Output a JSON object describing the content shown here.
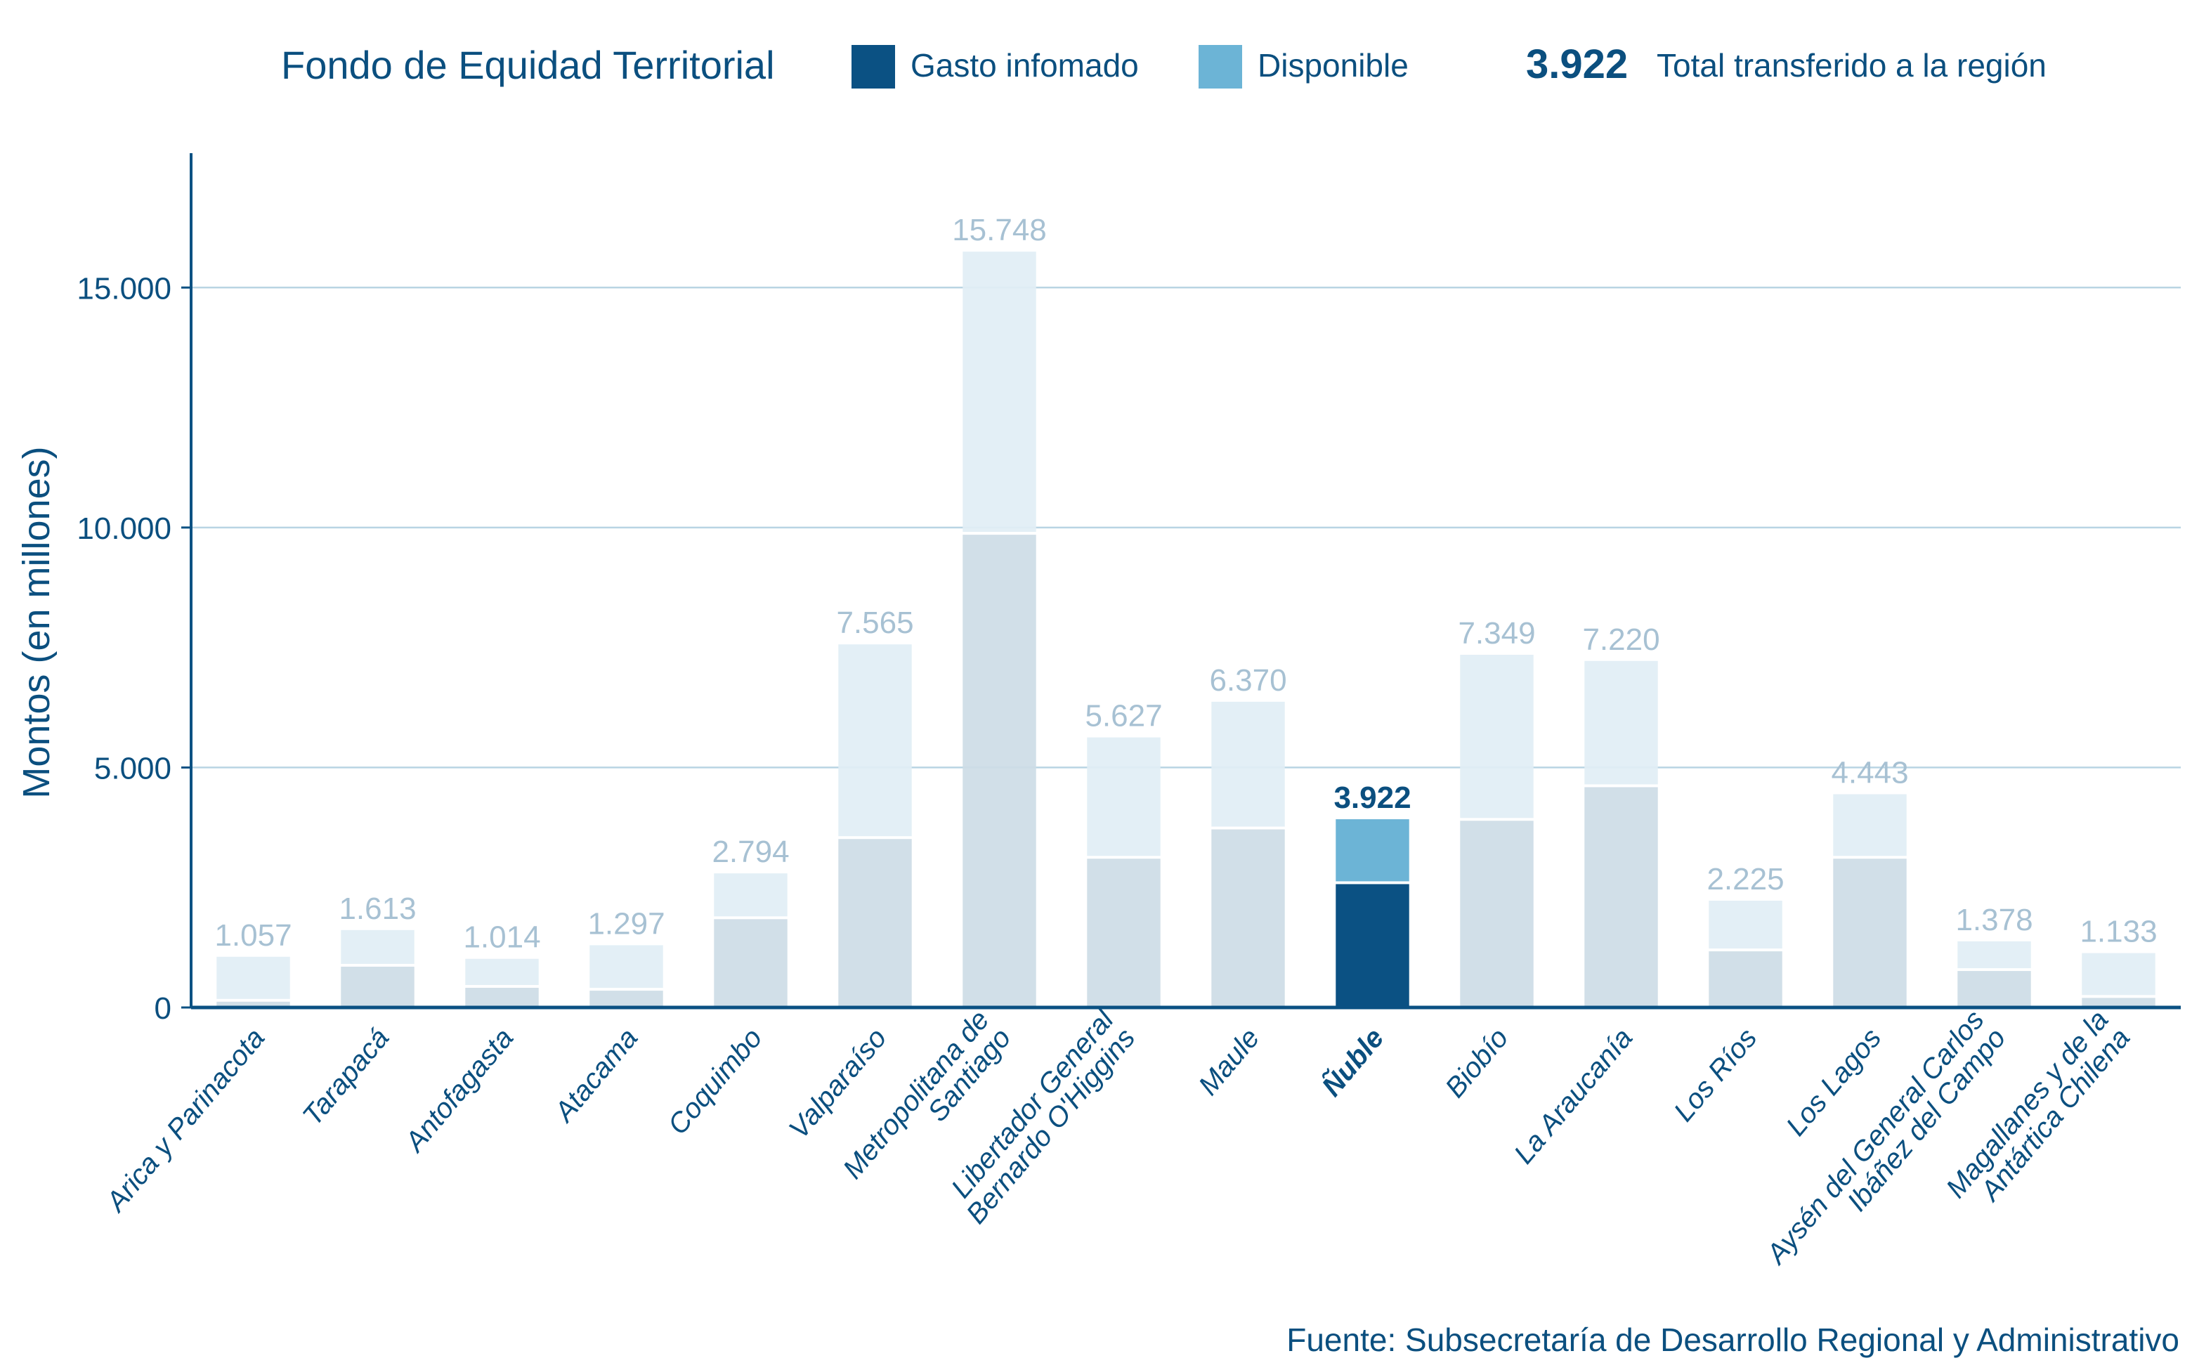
{
  "chart_data": {
    "type": "bar",
    "stacked": true,
    "title": "Fondo de Equidad Territorial",
    "xlabel": "",
    "ylabel": "Montos (en millones)",
    "ylim": [
      0,
      17800
    ],
    "yticks": [
      0,
      5000,
      10000,
      15000
    ],
    "ytick_labels": [
      "0",
      "5.000",
      "10.000",
      "15.000"
    ],
    "grid": true,
    "legend_position": "top",
    "highlight_category": "Ñuble",
    "categories": [
      "Arica y Parinacota",
      "Tarapacá",
      "Antofagasta",
      "Atacama",
      "Coquimbo",
      "Valparaíso",
      "Metropolitana de\nSantiago",
      "Libertador General\nBernardo O'Higgins",
      "Maule",
      "Ñuble",
      "Biobío",
      "La Araucanía",
      "Los Ríos",
      "Los Lagos",
      "Aysén del General Carlos\nIbáñez del Campo",
      "Magallanes y de la\nAntártica Chilena"
    ],
    "series": [
      {
        "name": "Gasto infomado",
        "color": "#0b5183",
        "muted_color": "#cddce6",
        "values": [
          120,
          850,
          410,
          350,
          1840,
          3510,
          9850,
          3100,
          3710,
          2570,
          3890,
          4590,
          1170,
          3100,
          760,
          200
        ]
      },
      {
        "name": "Disponible",
        "color": "#6cb4d6",
        "muted_color": "#e1eef5",
        "values": [
          937,
          763,
          604,
          947,
          954,
          4055,
          5898,
          2527,
          2660,
          1352,
          3459,
          2630,
          1055,
          1343,
          618,
          933
        ]
      }
    ],
    "totals": [
      1057,
      1613,
      1014,
      1297,
      2794,
      7565,
      15748,
      5627,
      6370,
      3922,
      7349,
      7220,
      2225,
      4443,
      1378,
      1133
    ],
    "total_labels": [
      "1.057",
      "1.613",
      "1.014",
      "1.297",
      "2.794",
      "7.565",
      "15.748",
      "5.627",
      "6.370",
      "3.922",
      "7.349",
      "7.220",
      "2.225",
      "4.443",
      "1.378",
      "1.133"
    ],
    "colors": {
      "axis": "#0b5183",
      "grid": "#b9d4e3",
      "text": "#0b4f7f",
      "muted_label": "#a7c1d3"
    }
  },
  "legend": {
    "title": "Fondo de Equidad Territorial",
    "items": [
      {
        "label": "Gasto infomado",
        "color": "#0b5183"
      },
      {
        "label": "Disponible",
        "color": "#6cb4d6"
      }
    ],
    "total_value": "3.922",
    "total_label": "Total transferido a la región"
  },
  "source": "Fuente: Subsecretaría de Desarrollo Regional y Administrativo"
}
